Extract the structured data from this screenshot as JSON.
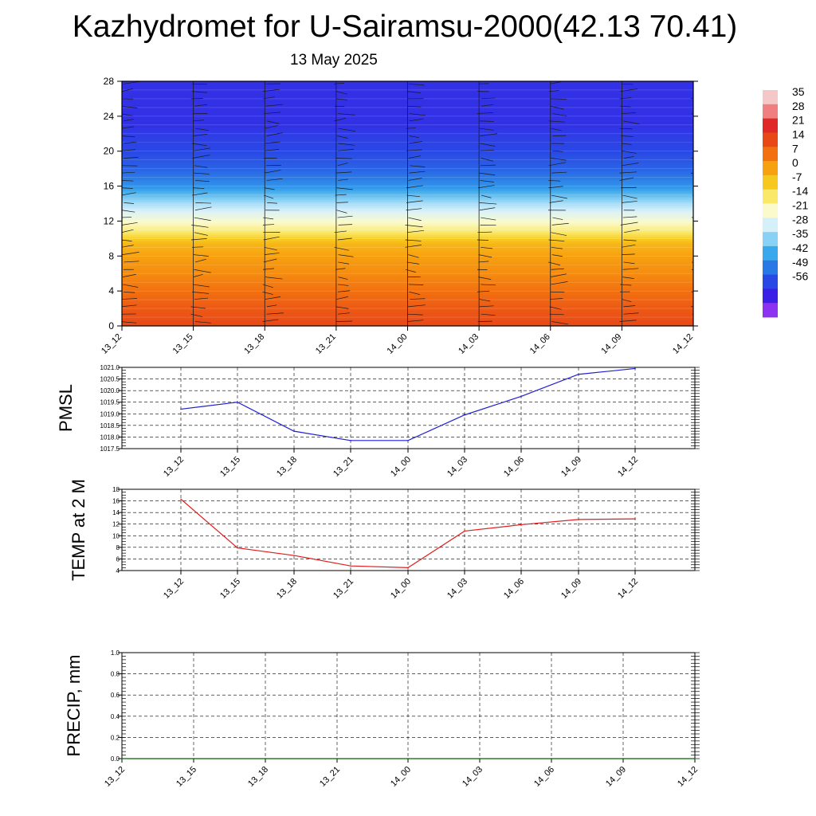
{
  "page": {
    "title": "Kazhydromet for U-Sairamsu-2000(42.13 70.41)",
    "date": "13 May 2025"
  },
  "colors": {
    "pmsl_line": "#1f1fd2",
    "temp_line": "#e01e1e",
    "precip_line": "#006400"
  },
  "chart_data": [
    {
      "id": "cross-section",
      "type": "heatmap",
      "title": "",
      "xlabel": "",
      "ylabel": "",
      "x_ticks": [
        "13_12",
        "13_15",
        "13_18",
        "13_21",
        "14_00",
        "14_03",
        "14_06",
        "14_09",
        "14_12"
      ],
      "y_ticks": [
        0,
        4,
        8,
        12,
        16,
        20,
        24,
        28
      ],
      "ylim": [
        0,
        28
      ],
      "temperature_by_level": [
        {
          "y": 0,
          "t": 14
        },
        {
          "y": 2,
          "t": 11
        },
        {
          "y": 4,
          "t": 7
        },
        {
          "y": 6,
          "t": 3
        },
        {
          "y": 8,
          "t": 0
        },
        {
          "y": 9.5,
          "t": -4
        },
        {
          "y": 10.5,
          "t": -12
        },
        {
          "y": 11,
          "t": -16
        },
        {
          "y": 12.5,
          "t": -24
        },
        {
          "y": 14,
          "t": -32
        },
        {
          "y": 16,
          "t": -45
        },
        {
          "y": 18,
          "t": -52
        },
        {
          "y": 20,
          "t": -56
        },
        {
          "y": 22,
          "t": -58
        },
        {
          "y": 23,
          "t": -60
        },
        {
          "y": 28,
          "t": -60
        }
      ],
      "wind_barbs": true,
      "colorbar": {
        "labels": [
          "35",
          "28",
          "21",
          "14",
          "7",
          "0",
          "-7",
          "-14",
          "-21",
          "-28",
          "-35",
          "-42",
          "-49",
          "-56"
        ],
        "colors": [
          "#f5c8c8",
          "#f08080",
          "#e02828",
          "#e84818",
          "#f27010",
          "#f7a010",
          "#f7c820",
          "#fae868",
          "#fafacc",
          "#d6f0fa",
          "#8ad2f5",
          "#3aa8ec",
          "#2a78e6",
          "#2a48e6",
          "#3a20e6",
          "#8e32f2"
        ]
      }
    },
    {
      "id": "pmsl",
      "type": "line",
      "title": "",
      "xlabel": "",
      "ylabel": "PMSL",
      "categories": [
        "13_12",
        "13_15",
        "13_18",
        "13_21",
        "14_00",
        "14_03",
        "14_06",
        "14_09",
        "14_12"
      ],
      "series": [
        {
          "values": [
            1019.2,
            1019.5,
            1018.25,
            1017.85,
            1017.85,
            1018.95,
            1019.75,
            1020.7,
            1020.95
          ]
        }
      ],
      "y_ticks": [
        "1017.5",
        "1018.0",
        "1018.5",
        "1019.0",
        "1019.5",
        "1020.0",
        "1020.5",
        "1021.0"
      ],
      "ylim": [
        1017.5,
        1021.0
      ],
      "grid": true
    },
    {
      "id": "temp2m",
      "type": "line",
      "title": "",
      "xlabel": "",
      "ylabel": "TEMP at 2 M",
      "categories": [
        "13_12",
        "13_15",
        "13_18",
        "13_21",
        "14_00",
        "14_03",
        "14_06",
        "14_09",
        "14_12"
      ],
      "series": [
        {
          "values": [
            16.3,
            7.9,
            6.6,
            4.8,
            4.5,
            10.8,
            11.9,
            12.8,
            12.9
          ]
        }
      ],
      "y_ticks": [
        "4",
        "6",
        "8",
        "10",
        "12",
        "14",
        "16",
        "18"
      ],
      "ylim": [
        4,
        18
      ],
      "grid": true
    },
    {
      "id": "precip",
      "type": "line",
      "title": "",
      "xlabel": "",
      "ylabel": "PRECIP, mm",
      "categories": [
        "13_12",
        "13_15",
        "13_18",
        "13_21",
        "14_00",
        "14_03",
        "14_06",
        "14_09",
        "14_12"
      ],
      "series": [
        {
          "values": [
            0,
            0,
            0,
            0,
            0,
            0,
            0,
            0,
            0
          ]
        }
      ],
      "y_ticks": [
        "0.0",
        "0.2",
        "0.4",
        "0.6",
        "0.8",
        "1.0"
      ],
      "ylim": [
        0,
        1.0
      ],
      "grid": true
    }
  ]
}
